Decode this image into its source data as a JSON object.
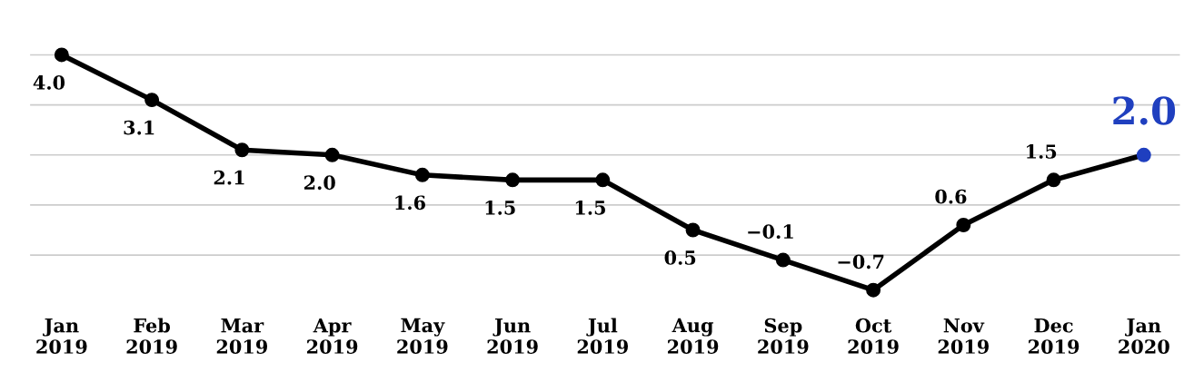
{
  "chart_data": {
    "type": "line",
    "categories": [
      "Jan\n2019",
      "Feb\n2019",
      "Mar\n2019",
      "Apr\n2019",
      "May\n2019",
      "Jun\n2019",
      "Jul\n2019",
      "Aug\n2019",
      "Sep\n2019",
      "Oct\n2019",
      "Nov\n2019",
      "Dec\n2019",
      "Jan\n2020"
    ],
    "series": [
      {
        "color": "#000000",
        "colors": [
          "#000000",
          "#000000",
          "#000000",
          "#000000",
          "#000000",
          "#000000",
          "#000000",
          "#000000",
          "#000000",
          "#000000",
          "#000000",
          "#000000",
          "#1f3fbf"
        ],
        "values": [
          4.0,
          3.1,
          2.1,
          2.0,
          1.6,
          1.5,
          1.5,
          0.5,
          -0.1,
          -0.7,
          0.6,
          1.5,
          2.0
        ],
        "value_labels": [
          "4.0",
          "3.1",
          "2.1",
          "2.0",
          "1.6",
          "1.5",
          "1.5",
          "0.5",
          "−0.1",
          "−0.7",
          "0.6",
          "1.5",
          "2.0"
        ]
      }
    ],
    "yticks": [
      {
        "value": 0,
        "label": null
      },
      {
        "value": 1,
        "label": null
      },
      {
        "value": 2,
        "label": null
      },
      {
        "value": 3,
        "label": null
      },
      {
        "value": 4,
        "label": null
      }
    ],
    "tick_labels": "x",
    "grid": "y",
    "marker": "circle",
    "line_style": "solid",
    "legend": false
  }
}
